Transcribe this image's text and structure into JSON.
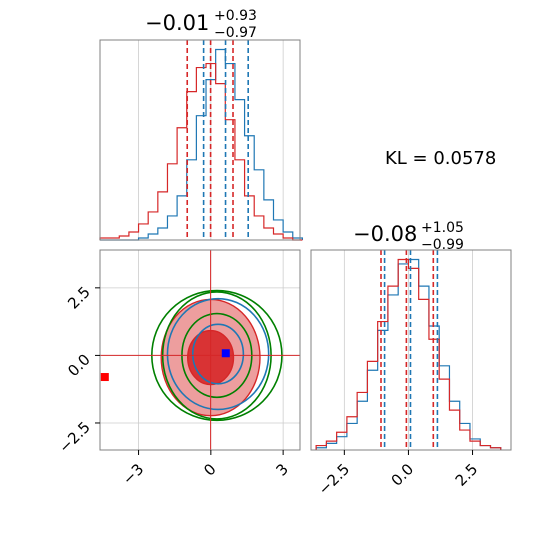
{
  "chart_data": {
    "type": "corner",
    "annotation": "KL = 0.0578",
    "panels": [
      {
        "id": "hist_x",
        "type": "histogram",
        "title_main": "−0.01",
        "title_plus": "+0.93",
        "title_minus": "−0.97",
        "xlim": [
          -4.6,
          3.7
        ],
        "quantile_lines": [
          {
            "color": "#d62728",
            "values": [
              -0.98,
              -0.01,
              0.92
            ]
          },
          {
            "color": "#1f77b4",
            "values": [
              -0.3,
              0.61,
              1.55
            ]
          }
        ],
        "series": [
          {
            "color": "#1f77b4",
            "centers": [
              -4.4,
              -4.0,
              -3.6,
              -3.2,
              -2.8,
              -2.4,
              -2.0,
              -1.6,
              -1.2,
              -0.8,
              -0.4,
              0.0,
              0.4,
              0.8,
              1.2,
              1.6,
              2.0,
              2.4,
              2.8,
              3.2,
              3.6
            ],
            "counts": [
              0,
              0,
              0,
              0,
              1,
              3,
              6,
              12,
              22,
              40,
              62,
              80,
              95,
              88,
              70,
              52,
              35,
              20,
              10,
              4,
              1
            ]
          },
          {
            "color": "#d62728",
            "centers": [
              -4.4,
              -4.0,
              -3.6,
              -3.2,
              -2.8,
              -2.4,
              -2.0,
              -1.6,
              -1.2,
              -0.8,
              -0.4,
              0.0,
              0.4,
              0.8,
              1.2,
              1.6,
              2.0,
              2.4,
              2.8,
              3.2,
              3.6
            ],
            "counts": [
              1,
              1,
              2,
              4,
              8,
              14,
              24,
              38,
              56,
              74,
              86,
              88,
              78,
              60,
              40,
              22,
              12,
              6,
              3,
              1,
              0
            ]
          }
        ]
      },
      {
        "id": "hist_y",
        "type": "histogram",
        "title_main": "−0.08",
        "title_plus": "+1.05",
        "title_minus": "−0.99",
        "xlim": [
          -3.8,
          4.0
        ],
        "xticks": [
          "−2.5",
          "0.0",
          "2.5"
        ],
        "xtick_values": [
          -2.5,
          0.0,
          2.5
        ],
        "quantile_lines": [
          {
            "color": "#d62728",
            "values": [
              -1.07,
              -0.08,
              0.97
            ]
          },
          {
            "color": "#1f77b4",
            "values": [
              -0.93,
              0.08,
              1.13
            ]
          }
        ],
        "series": [
          {
            "color": "#1f77b4",
            "centers": [
              -3.4,
              -3.0,
              -2.6,
              -2.2,
              -1.8,
              -1.4,
              -1.0,
              -0.6,
              -0.2,
              0.2,
              0.6,
              1.0,
              1.4,
              1.8,
              2.2,
              2.6,
              3.0,
              3.4
            ],
            "counts": [
              1,
              3,
              6,
              12,
              22,
              36,
              54,
              70,
              84,
              86,
              74,
              56,
              38,
              22,
              12,
              5,
              2,
              1
            ]
          },
          {
            "color": "#d62728",
            "centers": [
              -3.4,
              -3.0,
              -2.6,
              -2.2,
              -1.8,
              -1.4,
              -1.0,
              -0.6,
              -0.2,
              0.2,
              0.6,
              1.0,
              1.4,
              1.8,
              2.2,
              2.6,
              3.0,
              3.4
            ],
            "counts": [
              2,
              4,
              8,
              15,
              26,
              40,
              58,
              74,
              86,
              82,
              68,
              50,
              32,
              18,
              9,
              4,
              2,
              1
            ]
          }
        ]
      },
      {
        "id": "joint",
        "type": "contour",
        "xlim": [
          -4.6,
          3.7
        ],
        "ylim": [
          -3.5,
          3.9
        ],
        "xticks": [
          "−3",
          "0",
          "3"
        ],
        "xtick_values": [
          -3,
          0,
          3
        ],
        "yticks": [
          "−2.5",
          "0.0",
          "2.5"
        ],
        "ytick_values": [
          -2.5,
          0.0,
          2.5
        ],
        "reference_lines": {
          "x": -0.01,
          "y": 0.0
        },
        "markers": [
          {
            "shape": "square",
            "color": "#ff0000",
            "x": -4.4,
            "y": -0.8
          },
          {
            "shape": "square",
            "color": "#0000ff",
            "x": 0.62,
            "y": 0.08
          }
        ],
        "contours": [
          {
            "color": "#d62728",
            "cx": -0.01,
            "cy": -0.08,
            "rx": [
              0.95,
              2.05
            ],
            "ry": [
              1.0,
              2.15
            ],
            "filled": true
          },
          {
            "color": "#1f77b4",
            "cx": 0.3,
            "cy": 0.05,
            "rx": [
              1.05,
              2.1
            ],
            "ry": [
              1.1,
              2.05
            ],
            "filled": false
          },
          {
            "color": "#008000",
            "cx": 0.25,
            "cy": 0.0,
            "rx": [
              1.45,
              2.25,
              2.7
            ],
            "ry": [
              1.55,
              2.35,
              2.4
            ],
            "filled": false
          }
        ]
      }
    ]
  }
}
